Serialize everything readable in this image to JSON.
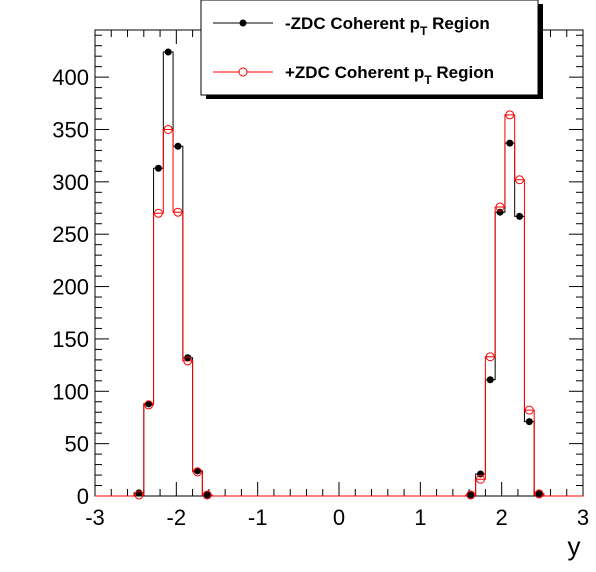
{
  "chart_data": {
    "type": "line",
    "xlabel": "y",
    "ylabel": "",
    "xlim": [
      -3,
      3
    ],
    "ylim": [
      0,
      445
    ],
    "x_ticks": [
      "-3",
      "-2",
      "-1",
      "0",
      "1",
      "2",
      "3"
    ],
    "y_ticks": [
      "0",
      "50",
      "100",
      "150",
      "200",
      "250",
      "300",
      "350",
      "400"
    ],
    "bin_width": 0.12,
    "legend": {
      "position": "top-right",
      "entries": [
        {
          "main": "-ZDC Coherent p",
          "sub": "T",
          "tail": " Region"
        },
        {
          "main": "+ZDC Coherent p",
          "sub": "T",
          "tail": " Region"
        }
      ]
    },
    "series": [
      {
        "marker": "filled-circle",
        "color": "#000000",
        "bins": [
          [
            -2.46,
            3
          ],
          [
            -2.34,
            88
          ],
          [
            -2.22,
            313
          ],
          [
            -2.1,
            424
          ],
          [
            -1.98,
            334
          ],
          [
            -1.86,
            132
          ],
          [
            -1.74,
            24
          ],
          [
            -1.62,
            1
          ],
          [
            1.62,
            1
          ],
          [
            1.74,
            21
          ],
          [
            1.86,
            111
          ],
          [
            1.98,
            271
          ],
          [
            2.1,
            337
          ],
          [
            2.22,
            267
          ],
          [
            2.34,
            71
          ],
          [
            2.46,
            2
          ]
        ]
      },
      {
        "marker": "open-circle",
        "color": "#ff0000",
        "bins": [
          [
            -2.46,
            1
          ],
          [
            -2.34,
            87
          ],
          [
            -2.22,
            270
          ],
          [
            -2.1,
            350
          ],
          [
            -1.98,
            271
          ],
          [
            -1.86,
            129
          ],
          [
            -1.74,
            23
          ],
          [
            -1.62,
            1
          ],
          [
            1.62,
            1
          ],
          [
            1.74,
            16
          ],
          [
            1.86,
            133
          ],
          [
            1.98,
            276
          ],
          [
            2.1,
            364
          ],
          [
            2.22,
            302
          ],
          [
            2.34,
            82
          ],
          [
            2.46,
            2
          ]
        ]
      }
    ]
  }
}
